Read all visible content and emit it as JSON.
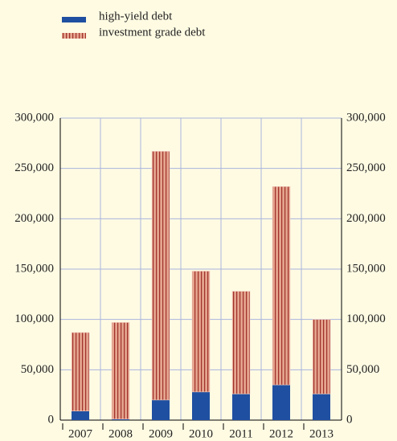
{
  "chart_data": {
    "type": "bar",
    "stacked": true,
    "categories": [
      "2007",
      "2008",
      "2009",
      "2010",
      "2011",
      "2012",
      "2013"
    ],
    "series": [
      {
        "name": "high-yield debt",
        "color": "#1f4fa0",
        "values": [
          9000,
          1000,
          20000,
          28000,
          26000,
          35000,
          26000
        ]
      },
      {
        "name": "investment grade debt",
        "color": "#e4a48e",
        "stripe": "#a0302a",
        "values": [
          78000,
          96000,
          247000,
          120000,
          102000,
          197000,
          74000
        ]
      }
    ],
    "ylim": [
      0,
      300000
    ],
    "yticks": [
      0,
      {
        "value": 50000,
        "label": "50,000"
      },
      {
        "value": 100000,
        "label": "100,000"
      },
      {
        "value": 150000,
        "label": "150,000"
      },
      {
        "value": 200000,
        "label": "200,000"
      },
      {
        "value": 250000,
        "label": "250,000"
      },
      {
        "value": 300000,
        "label": "300,000"
      }
    ],
    "grid": true,
    "legend": "top-left"
  }
}
